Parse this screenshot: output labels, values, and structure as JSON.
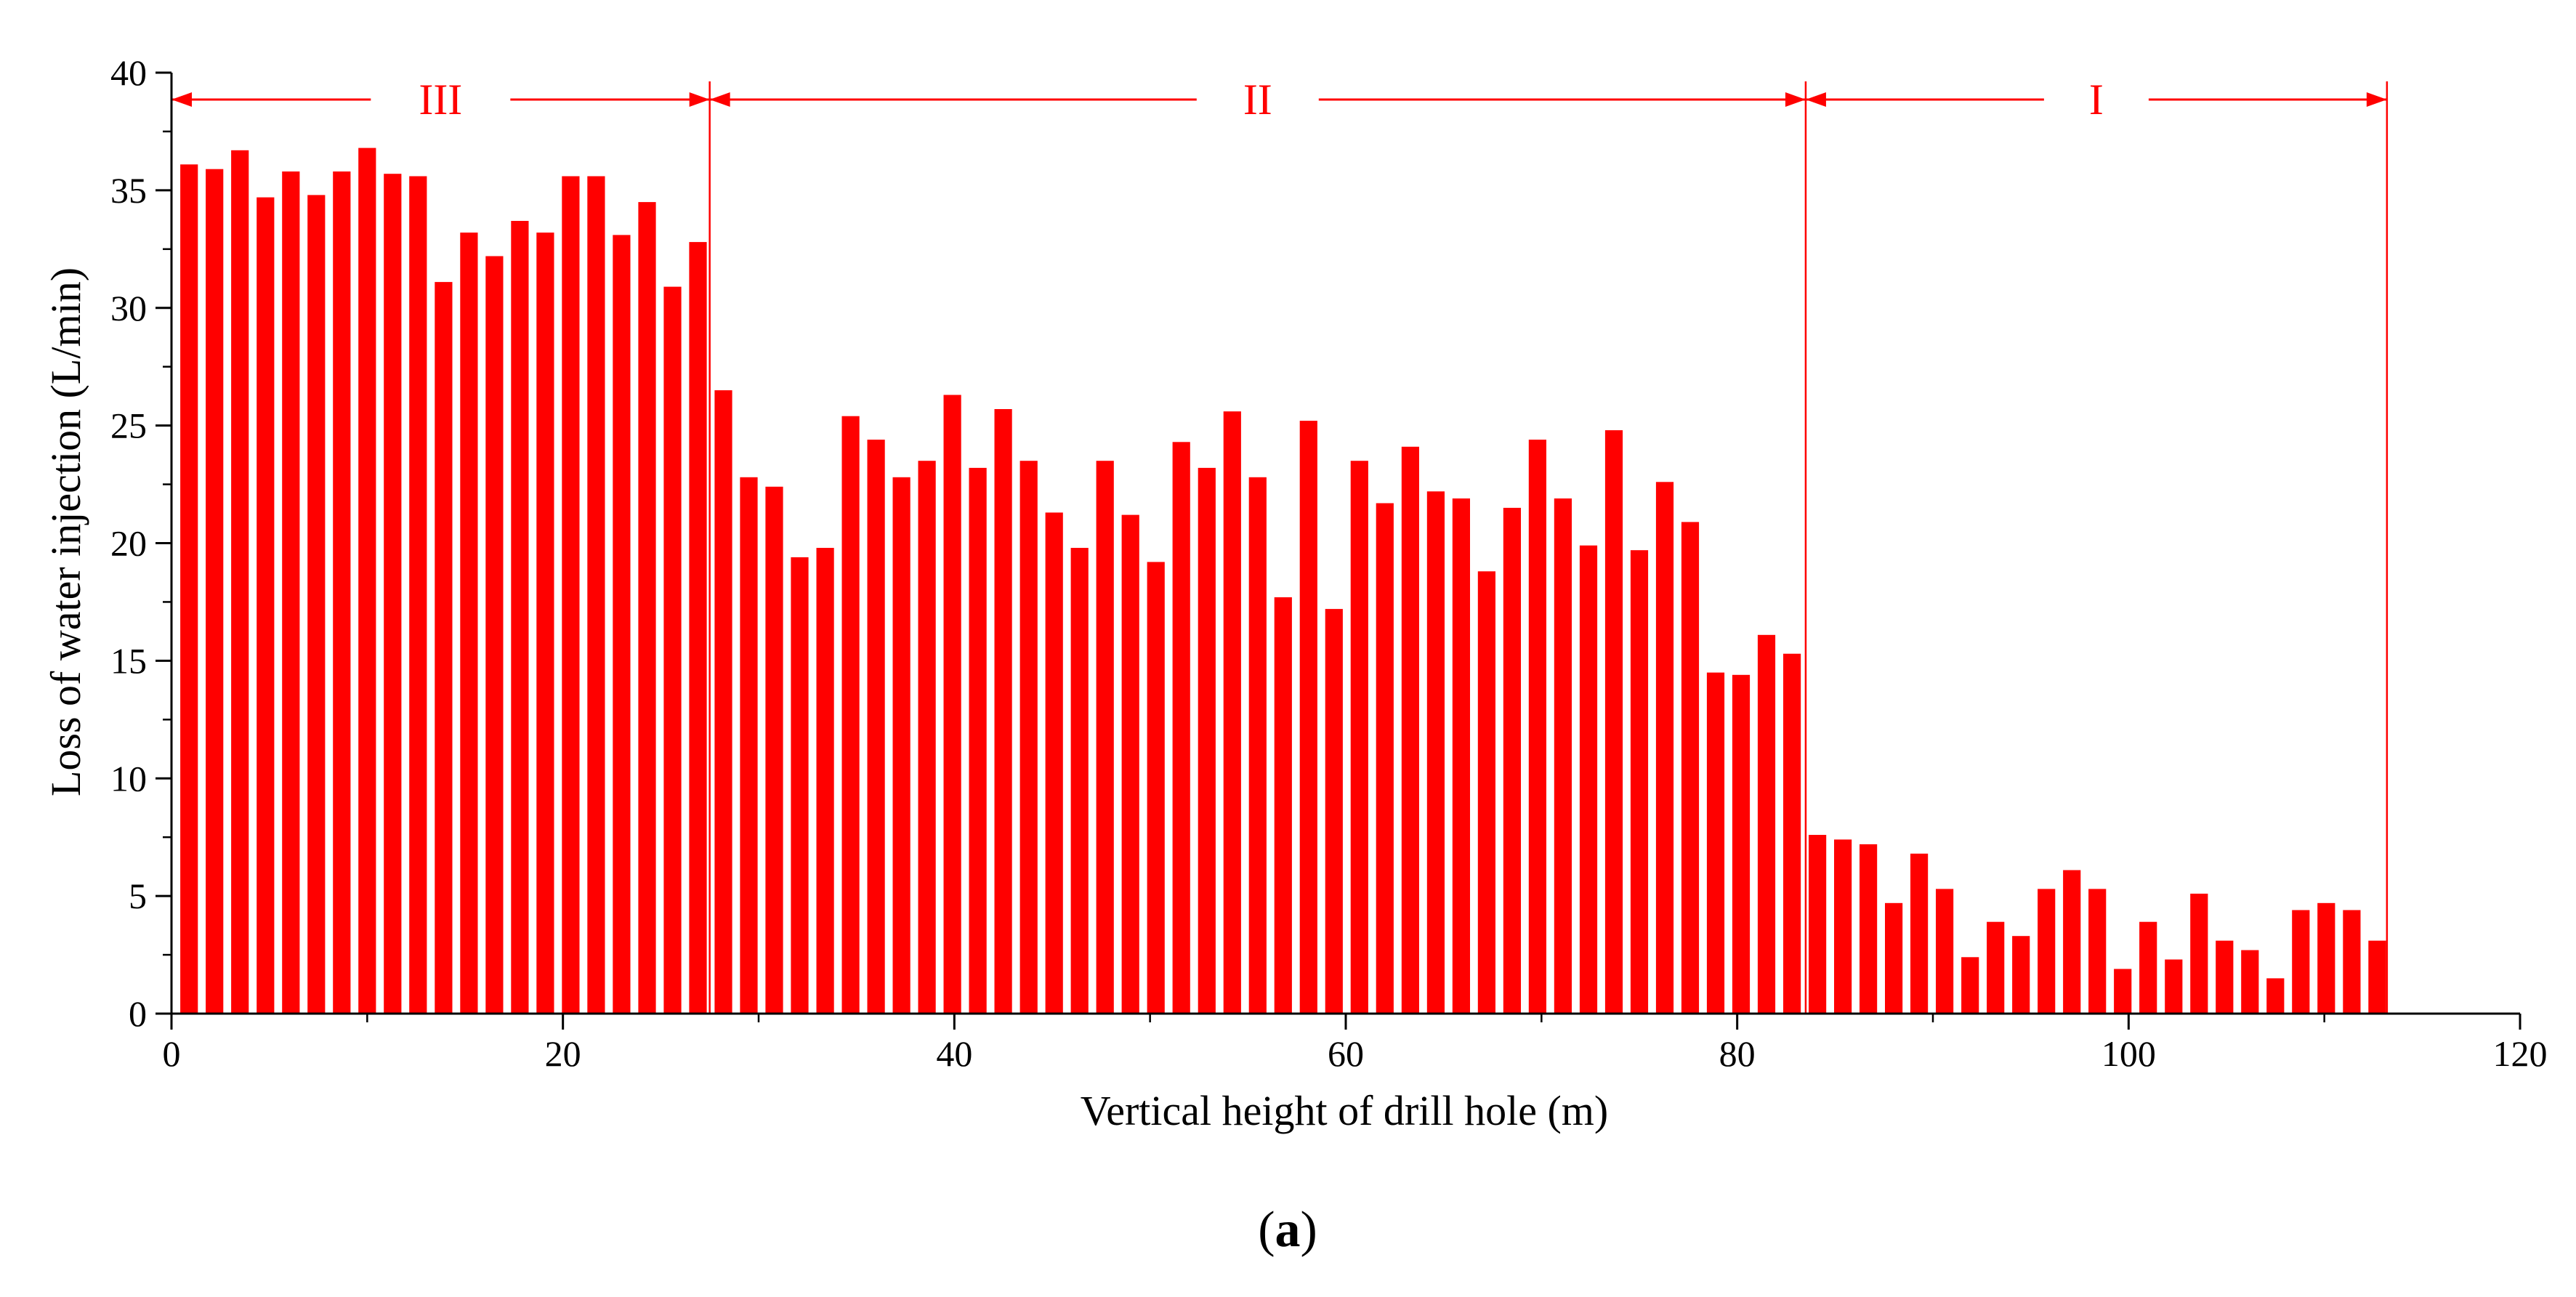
{
  "chart_data": {
    "type": "bar",
    "xlabel": "Vertical height of drill hole (m)",
    "ylabel": "Loss of water injection (L/min)",
    "xlim": [
      0,
      120
    ],
    "ylim": [
      0,
      40
    ],
    "xticks": [
      0,
      20,
      40,
      60,
      80,
      100,
      120
    ],
    "yticks": [
      0,
      5,
      10,
      15,
      20,
      25,
      30,
      35,
      40
    ],
    "bar_color": "#ff0000",
    "bar_width": 0.9,
    "x": [
      0.9,
      2.2,
      3.5,
      4.8,
      6.1,
      7.4,
      8.7,
      10.0,
      11.3,
      12.6,
      13.9,
      15.2,
      16.5,
      17.8,
      19.1,
      20.4,
      21.7,
      23.0,
      24.3,
      25.6,
      26.9,
      28.2,
      29.5,
      30.8,
      32.1,
      33.4,
      34.7,
      36.0,
      37.3,
      38.6,
      39.9,
      41.2,
      42.5,
      43.8,
      45.1,
      46.4,
      47.7,
      49.0,
      50.3,
      51.6,
      52.9,
      54.2,
      55.5,
      56.8,
      58.1,
      59.4,
      60.7,
      62.0,
      63.3,
      64.6,
      65.9,
      67.2,
      68.5,
      69.8,
      71.1,
      72.4,
      73.7,
      75.0,
      76.3,
      77.6,
      78.9,
      80.2,
      81.5,
      82.8,
      84.1,
      85.4,
      86.7,
      88.0,
      89.3,
      90.6,
      91.9,
      93.2,
      94.5,
      95.8,
      97.1,
      98.4,
      99.7,
      101.0,
      102.3,
      103.6,
      104.9,
      106.2,
      107.5,
      108.8,
      110.1,
      111.4,
      112.7
    ],
    "values": [
      36.1,
      35.9,
      36.7,
      34.7,
      35.8,
      34.8,
      35.8,
      36.8,
      35.7,
      35.6,
      31.1,
      33.2,
      32.2,
      33.7,
      33.2,
      35.6,
      35.6,
      33.1,
      34.5,
      30.9,
      32.8,
      26.5,
      22.8,
      22.4,
      19.4,
      19.8,
      25.4,
      24.4,
      22.8,
      23.5,
      26.3,
      23.2,
      25.7,
      23.5,
      21.3,
      19.8,
      23.5,
      21.2,
      19.2,
      24.3,
      23.2,
      25.6,
      22.8,
      17.7,
      25.2,
      17.2,
      23.5,
      21.7,
      24.1,
      22.2,
      21.9,
      18.8,
      21.5,
      24.4,
      21.9,
      19.9,
      24.8,
      19.7,
      22.6,
      20.9,
      14.5,
      14.4,
      16.1,
      15.3,
      7.6,
      7.4,
      7.2,
      4.7,
      6.8,
      5.3,
      2.4,
      3.9,
      3.3,
      5.3,
      6.1,
      5.3,
      1.9,
      3.9,
      2.3,
      5.1,
      3.1,
      2.7,
      1.5,
      4.4,
      4.7,
      4.4,
      3.1
    ],
    "zones": [
      {
        "label": "III",
        "start": 0,
        "end": 27.5
      },
      {
        "label": "II",
        "start": 27.5,
        "end": 83.5
      },
      {
        "label": "I",
        "start": 83.5,
        "end": 113.2
      }
    ],
    "zone_color": "#ff0000",
    "grid": false
  },
  "panel_label": {
    "open": "(",
    "letter": "a",
    "close": ")"
  }
}
